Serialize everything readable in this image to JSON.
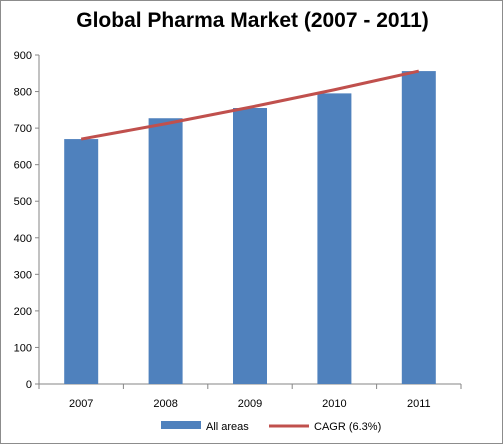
{
  "chart_data": {
    "type": "bar",
    "title": "Global Pharma Market (2007 - 2011)",
    "xlabel": "",
    "ylabel": "",
    "categories": [
      "2007",
      "2008",
      "2009",
      "2010",
      "2011"
    ],
    "ylim": [
      0,
      900
    ],
    "yticks": [
      0,
      100,
      200,
      300,
      400,
      500,
      600,
      700,
      800,
      900
    ],
    "grid": false,
    "legend_position": "bottom",
    "series": [
      {
        "name": "All areas",
        "type": "bar",
        "color": "#4f81bd",
        "values": [
          670,
          727,
          755,
          795,
          856
        ]
      },
      {
        "name": "CAGR (6.3%)",
        "type": "line",
        "color": "#c0504d",
        "values": [
          670,
          712,
          757,
          805,
          856
        ]
      }
    ]
  }
}
